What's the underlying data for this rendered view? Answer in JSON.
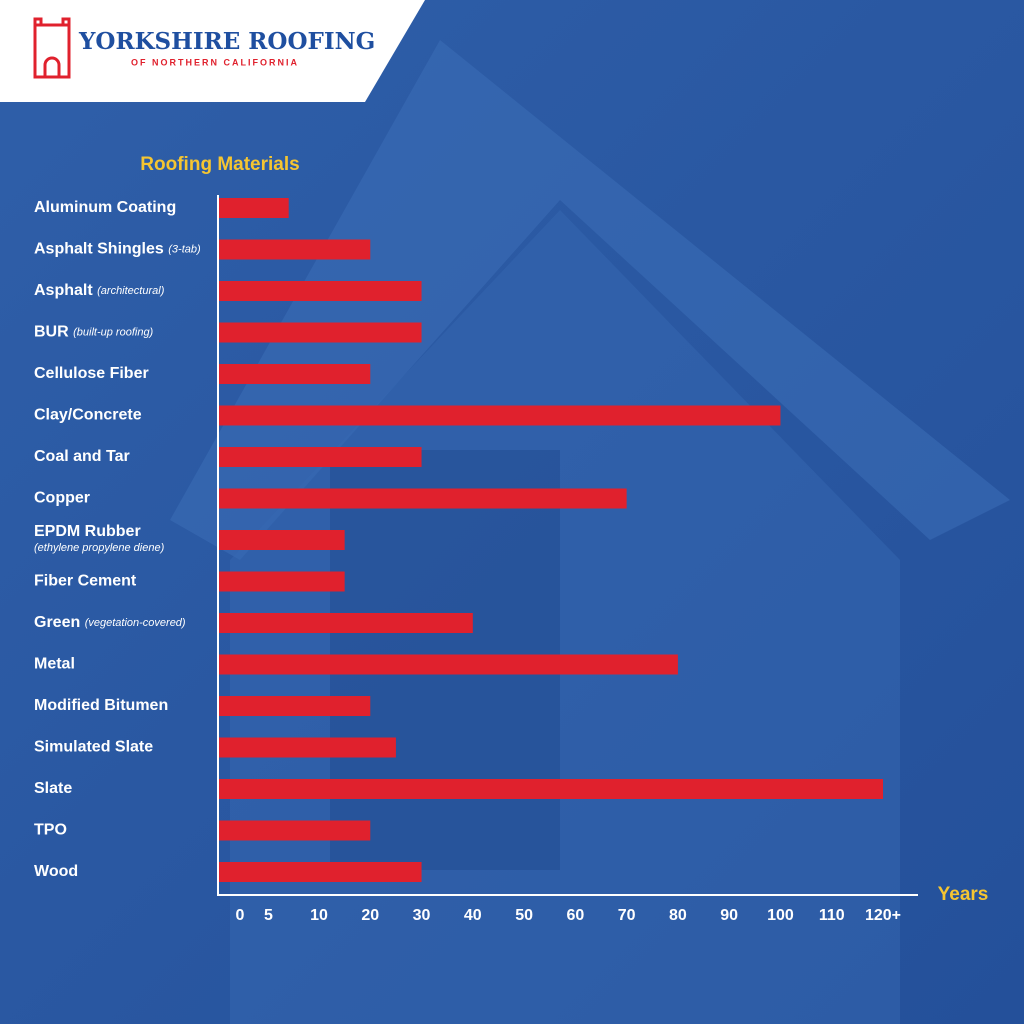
{
  "header": {
    "brand": "YORKSHIRE ROOFING",
    "tagline": "OF NORTHERN CALIFORNIA"
  },
  "chart_data": {
    "type": "hbar",
    "title": "Roofing Materials",
    "x_label": "Years",
    "categories": [
      "Aluminum Coating",
      "Asphalt Shingles",
      "Asphalt",
      "BUR",
      "Cellulose Fiber",
      "Clay/Concrete",
      "Coal and Tar",
      "Copper",
      "EPDM Rubber",
      "Fiber Cement",
      "Green",
      "Metal",
      "Modified Bitumen",
      "Simulated Slate",
      "Slate",
      "TPO",
      "Wood"
    ],
    "category_notes": [
      null,
      "(3-tab)",
      "(architectural)",
      "(built-up roofing)",
      null,
      null,
      null,
      null,
      "(ethylene propylene diene)",
      null,
      "(vegetation-covered)",
      null,
      null,
      null,
      null,
      null,
      null
    ],
    "values": [
      7,
      20,
      30,
      30,
      20,
      100,
      30,
      70,
      15,
      15,
      40,
      80,
      20,
      25,
      120,
      20,
      30
    ],
    "color": "#e0212d",
    "xlim": [
      0,
      120
    ],
    "xticks": [
      0,
      5,
      10,
      20,
      30,
      40,
      50,
      60,
      70,
      80,
      90,
      100,
      110,
      {
        "value": 120,
        "label": "120+"
      }
    ]
  }
}
